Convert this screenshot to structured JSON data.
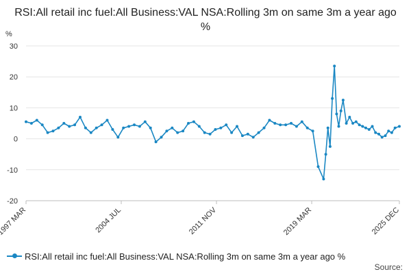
{
  "chart_data": {
    "type": "line",
    "title": "RSI:All retail inc fuel:All Business:VAL NSA:Rolling 3m on same 3m a year ago %",
    "ylabel": "%",
    "xlabel": "",
    "ylim": [
      -20,
      30
    ],
    "yticks": [
      30,
      20,
      10,
      0,
      -10,
      -20
    ],
    "xtick_labels": [
      "1997 MAR",
      "2004 JUL",
      "2011 NOV",
      "2019 MAR",
      "2025 DEC"
    ],
    "grid": "horizontal",
    "legend_position": "bottom-left",
    "color": "#1a87c3",
    "series": [
      {
        "name": "RSI:All retail inc fuel:All Business:VAL NSA:Rolling 3m on same 3m a year ago %",
        "x": [
          "1997 MAR",
          "1997 AUG",
          "1998 JAN",
          "1998 JUN",
          "1998 NOV",
          "1999 APR",
          "1999 SEP",
          "2000 FEB",
          "2000 JUL",
          "2000 DEC",
          "2001 MAY",
          "2001 OCT",
          "2002 MAR",
          "2002 AUG",
          "2003 JAN",
          "2003 JUN",
          "2003 NOV",
          "2004 APR",
          "2004 SEP",
          "2005 FEB",
          "2005 JUL",
          "2005 DEC",
          "2006 MAY",
          "2006 OCT",
          "2007 MAR",
          "2007 AUG",
          "2008 JAN",
          "2008 JUN",
          "2008 NOV",
          "2009 APR",
          "2009 SEP",
          "2010 FEB",
          "2010 JUL",
          "2010 DEC",
          "2011 MAY",
          "2011 OCT",
          "2012 MAR",
          "2012 AUG",
          "2013 JAN",
          "2013 JUN",
          "2013 NOV",
          "2014 APR",
          "2014 SEP",
          "2015 FEB",
          "2015 JUL",
          "2015 DEC",
          "2016 MAY",
          "2016 OCT",
          "2017 MAR",
          "2017 AUG",
          "2018 JAN",
          "2018 JUN",
          "2018 NOV",
          "2019 APR",
          "2019 SEP",
          "2020 FEB",
          "2020 APR",
          "2020 JUN",
          "2020 AUG",
          "2020 OCT",
          "2020 DEC",
          "2021 FEB",
          "2021 APR",
          "2021 JUN",
          "2021 AUG",
          "2021 NOV",
          "2022 FEB",
          "2022 MAY",
          "2022 AUG",
          "2022 NOV",
          "2023 FEB",
          "2023 MAY",
          "2023 AUG",
          "2023 NOV",
          "2024 FEB",
          "2024 MAY",
          "2024 AUG",
          "2024 NOV",
          "2025 FEB",
          "2025 MAY",
          "2025 AUG",
          "2025 DEC"
        ],
        "values": [
          5.5,
          5.0,
          6.0,
          4.5,
          2.0,
          2.5,
          3.5,
          5.0,
          4.0,
          4.5,
          7.0,
          3.5,
          2.0,
          3.5,
          4.5,
          6.0,
          3.0,
          0.5,
          3.5,
          4.0,
          4.5,
          4.0,
          5.5,
          3.5,
          -1.0,
          0.5,
          2.5,
          3.5,
          2.0,
          2.5,
          5.0,
          5.5,
          4.0,
          2.0,
          1.5,
          3.0,
          3.5,
          4.5,
          2.0,
          4.0,
          1.0,
          1.5,
          0.5,
          2.0,
          3.5,
          6.0,
          5.0,
          4.5,
          4.5,
          5.0,
          4.0,
          5.5,
          3.5,
          2.5,
          -9.0,
          -13.0,
          -5.0,
          3.5,
          -2.5,
          13.0,
          23.5,
          8.0,
          4.0,
          9.0,
          12.5,
          5.0,
          7.0,
          5.0,
          5.5,
          4.5,
          4.0,
          3.5,
          3.0,
          4.0,
          2.0,
          1.5,
          0.5,
          1.0,
          2.5,
          2.0,
          3.5,
          4.0
        ]
      }
    ]
  },
  "source_label": "Source:"
}
